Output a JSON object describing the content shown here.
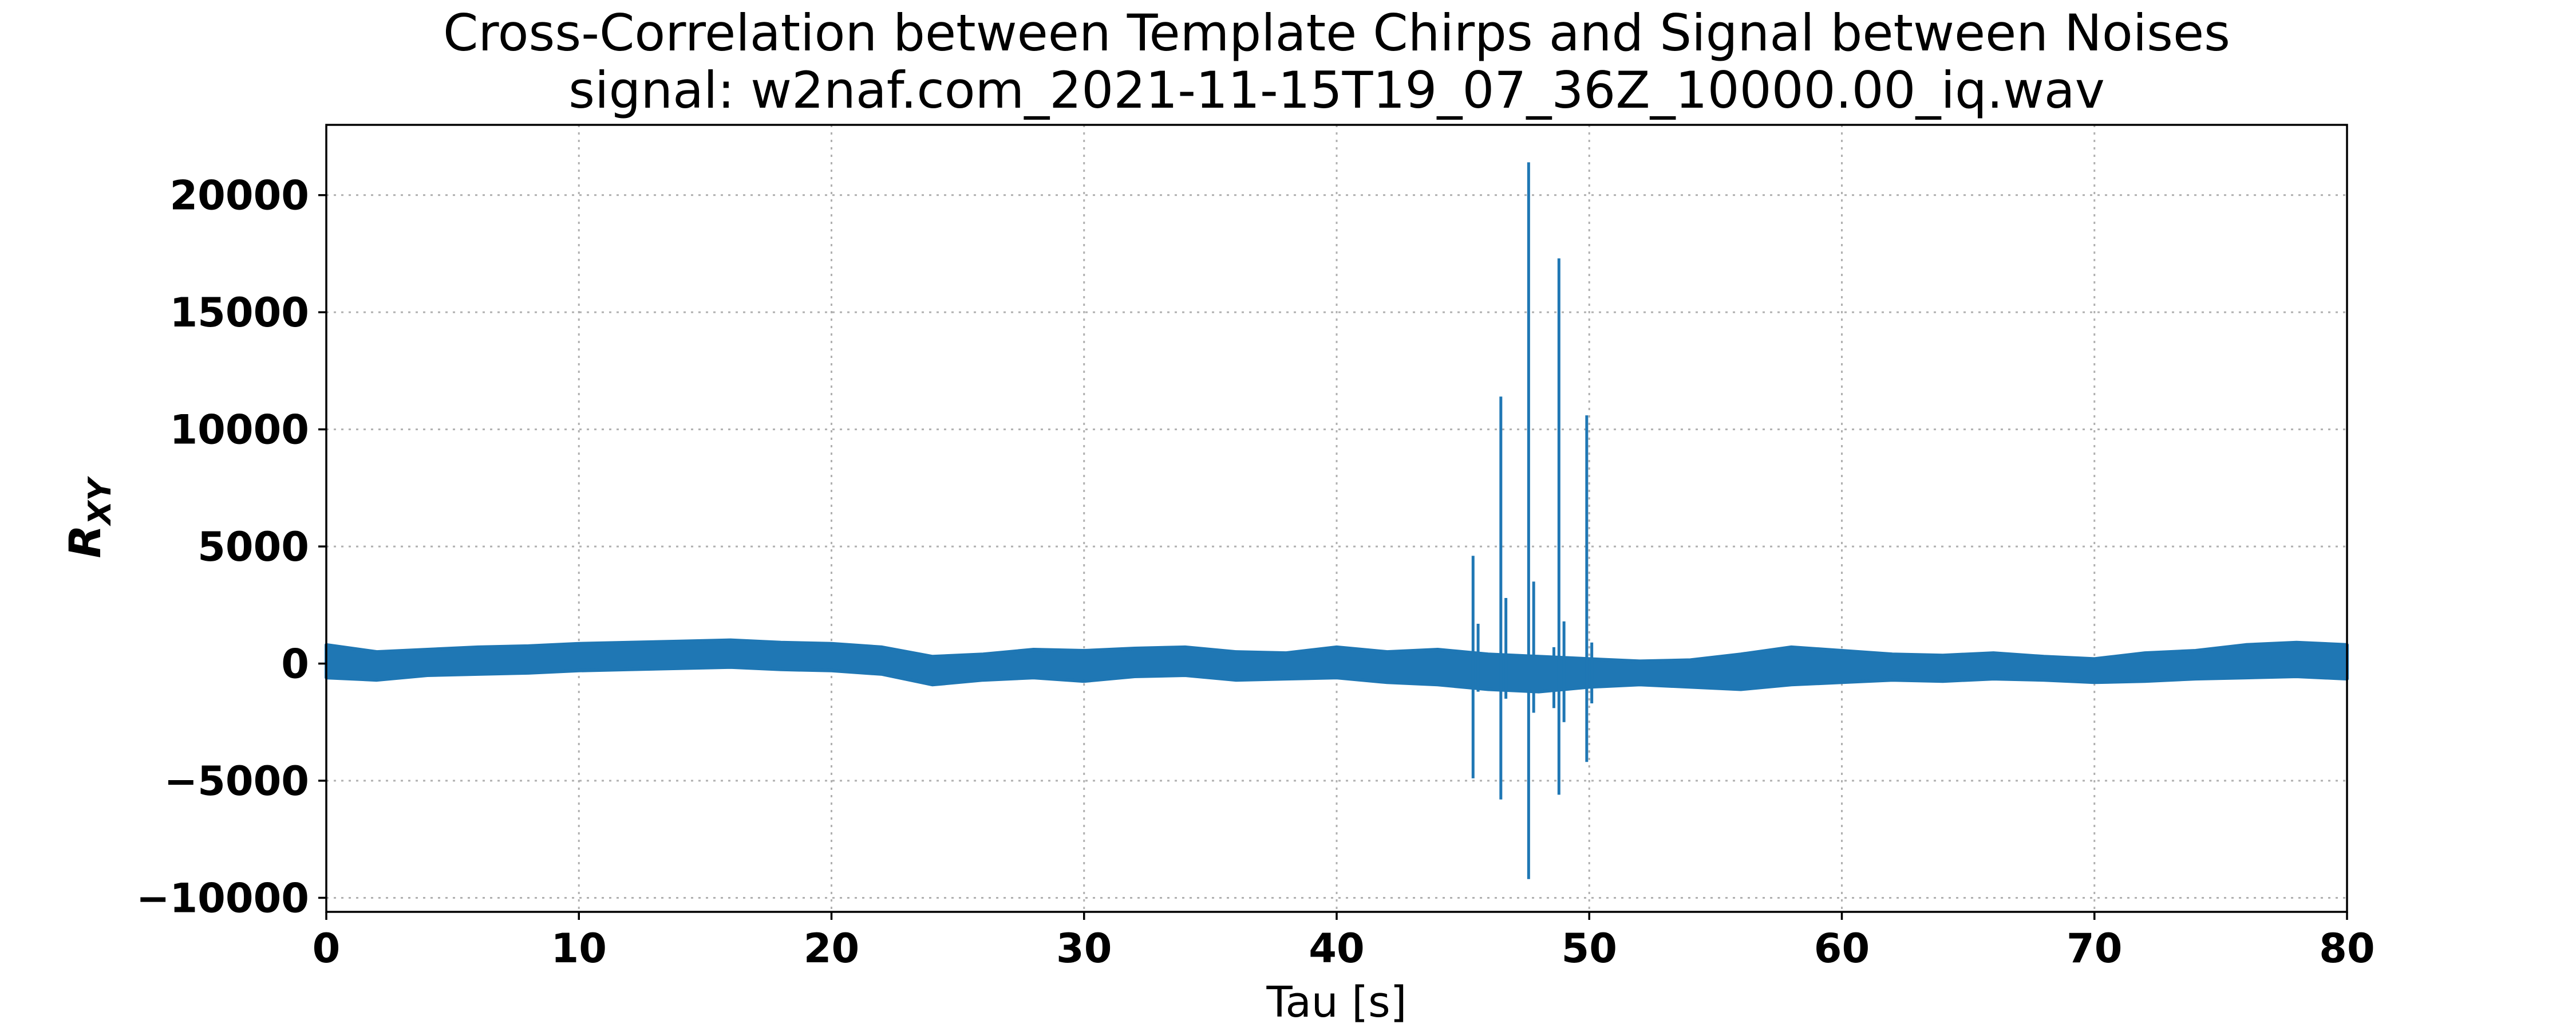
{
  "chart_data": {
    "type": "line",
    "title": "Cross-Correlation between Template Chirps and Signal between Noises",
    "subtitle": "signal: w2naf.com_2021-11-15T19_07_36Z_10000.00_iq.wav",
    "xlabel": "Tau [s]",
    "ylabel": "R",
    "ylabel_subscript": "XY",
    "xlim": [
      0,
      80
    ],
    "ylim": [
      -10600,
      23000
    ],
    "xticks": [
      0,
      10,
      20,
      30,
      40,
      50,
      60,
      70,
      80
    ],
    "yticks": [
      -10000,
      -5000,
      0,
      5000,
      10000,
      15000,
      20000
    ],
    "xtick_labels": [
      "0",
      "10",
      "20",
      "30",
      "40",
      "50",
      "60",
      "70",
      "80"
    ],
    "ytick_labels": [
      "−10000",
      "−5000",
      "0",
      "5000",
      "10000",
      "15000",
      "20000"
    ],
    "grid": true,
    "series_color": "#1f77b4",
    "baseline_envelope": {
      "x": [
        0,
        2,
        4,
        6,
        8,
        10,
        12,
        14,
        16,
        18,
        20,
        22,
        24,
        26,
        28,
        30,
        32,
        34,
        36,
        38,
        40,
        42,
        44,
        46,
        48,
        50,
        52,
        54,
        56,
        58,
        60,
        62,
        64,
        66,
        68,
        70,
        72,
        74,
        76,
        78,
        80
      ],
      "upper": [
        800,
        500,
        600,
        700,
        750,
        850,
        900,
        950,
        1000,
        900,
        850,
        700,
        300,
        400,
        600,
        550,
        650,
        700,
        500,
        450,
        700,
        500,
        600,
        400,
        300,
        200,
        100,
        150,
        400,
        700,
        550,
        400,
        350,
        450,
        300,
        200,
        450,
        550,
        800,
        900,
        800
      ],
      "lower": [
        -600,
        -700,
        -500,
        -450,
        -400,
        -300,
        -250,
        -200,
        -150,
        -250,
        -300,
        -450,
        -900,
        -700,
        -600,
        -750,
        -550,
        -500,
        -700,
        -650,
        -600,
        -800,
        -900,
        -1100,
        -1200,
        -1000,
        -900,
        -1000,
        -1100,
        -900,
        -800,
        -700,
        -750,
        -650,
        -700,
        -800,
        -750,
        -650,
        -600,
        -550,
        -650
      ]
    },
    "spikes": [
      {
        "x": 45.4,
        "max": 4600,
        "min": -4900
      },
      {
        "x": 45.6,
        "max": 1700,
        "min": -1200
      },
      {
        "x": 46.5,
        "max": 11400,
        "min": -5800
      },
      {
        "x": 46.7,
        "max": 2800,
        "min": -1500
      },
      {
        "x": 47.6,
        "max": 21400,
        "min": -9200
      },
      {
        "x": 47.8,
        "max": 3500,
        "min": -2100
      },
      {
        "x": 48.6,
        "max": 700,
        "min": -1900
      },
      {
        "x": 48.8,
        "max": 17300,
        "min": -5600
      },
      {
        "x": 49.0,
        "max": 1800,
        "min": -2500
      },
      {
        "x": 49.9,
        "max": 10600,
        "min": -4200
      },
      {
        "x": 50.1,
        "max": 900,
        "min": -1700
      }
    ]
  }
}
